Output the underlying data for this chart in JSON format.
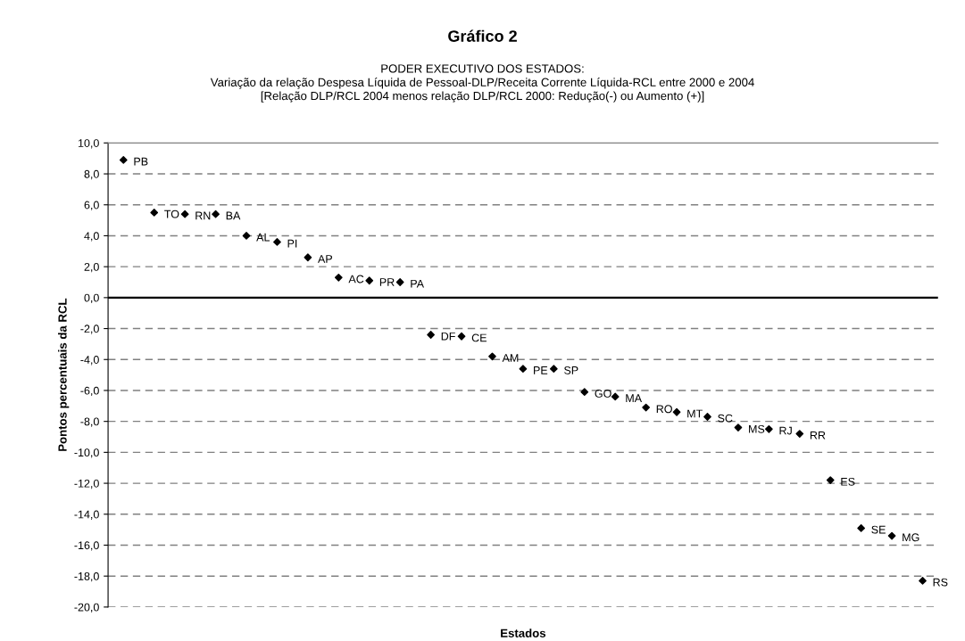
{
  "chart_data": {
    "type": "scatter",
    "title": "Gráfico 2",
    "subtitle": "PODER EXECUTIVO DOS ESTADOS:\nVariação da relação Despesa Líquida de Pessoal-DLP/Receita Corrente Líquida-RCL entre 2000 e 2004\n[Relação DLP/RCL 2004 menos relação DLP/RCL 2000: Redução(-) ou Aumento (+)]",
    "xlabel": "Estados",
    "ylabel": "Pontos percentuais da RCL",
    "categories": [
      null,
      null,
      null,
      null,
      null,
      null,
      null,
      null,
      null,
      null,
      null,
      null,
      null,
      null,
      null,
      null,
      null,
      null,
      null,
      null,
      null,
      null,
      null,
      null,
      null,
      null,
      null
    ],
    "series": [
      {
        "color": "#000000",
        "values": [
          8.9,
          5.5,
          5.4,
          5.4,
          4.0,
          3.6,
          2.6,
          1.3,
          1.1,
          1.0,
          -2.4,
          -2.5,
          -3.8,
          -4.6,
          -4.6,
          -6.1,
          -6.4,
          -7.1,
          -7.4,
          -7.7,
          -8.4,
          -8.5,
          -8.8,
          -11.8,
          -14.9,
          -15.4,
          -18.3
        ]
      }
    ],
    "annotations": [
      "PB",
      "TO",
      "RN",
      "BA",
      "AL",
      "PI",
      "AP",
      "AC",
      "PR",
      "PA",
      "DF",
      "CE",
      "AM",
      "PE",
      "SP",
      "GO",
      "MA",
      "RO",
      "MT",
      "SC",
      "MS",
      "RJ",
      "RR",
      "ES",
      "SE",
      "MG",
      "RS"
    ],
    "ylim": [
      -20,
      10
    ],
    "yticks": [
      {
        "value": 10,
        "label": "10,0"
      },
      {
        "value": 8,
        "label": "8,0"
      },
      {
        "value": 6,
        "label": "6,0"
      },
      {
        "value": 4,
        "label": "4,0"
      },
      {
        "value": 2,
        "label": "2,0"
      },
      {
        "value": 0,
        "label": "0,0"
      },
      {
        "value": -2,
        "label": "-2,0"
      },
      {
        "value": -4,
        "label": "-4,0"
      },
      {
        "value": -6,
        "label": "-6,0"
      },
      {
        "value": -8,
        "label": "-8,0"
      },
      {
        "value": -10,
        "label": "-10,0"
      },
      {
        "value": -12,
        "label": "-12,0"
      },
      {
        "value": -14,
        "label": "-14,0"
      },
      {
        "value": -16,
        "label": "-16,0"
      },
      {
        "value": -18,
        "label": "-18,0"
      },
      {
        "value": -20,
        "label": "-20,0"
      }
    ],
    "ref_lines": [
      {
        "axis": "y",
        "value": 0,
        "color": "#000000",
        "line_style": "solid"
      }
    ],
    "grid": "y",
    "marker": "diamond",
    "legend": false
  }
}
